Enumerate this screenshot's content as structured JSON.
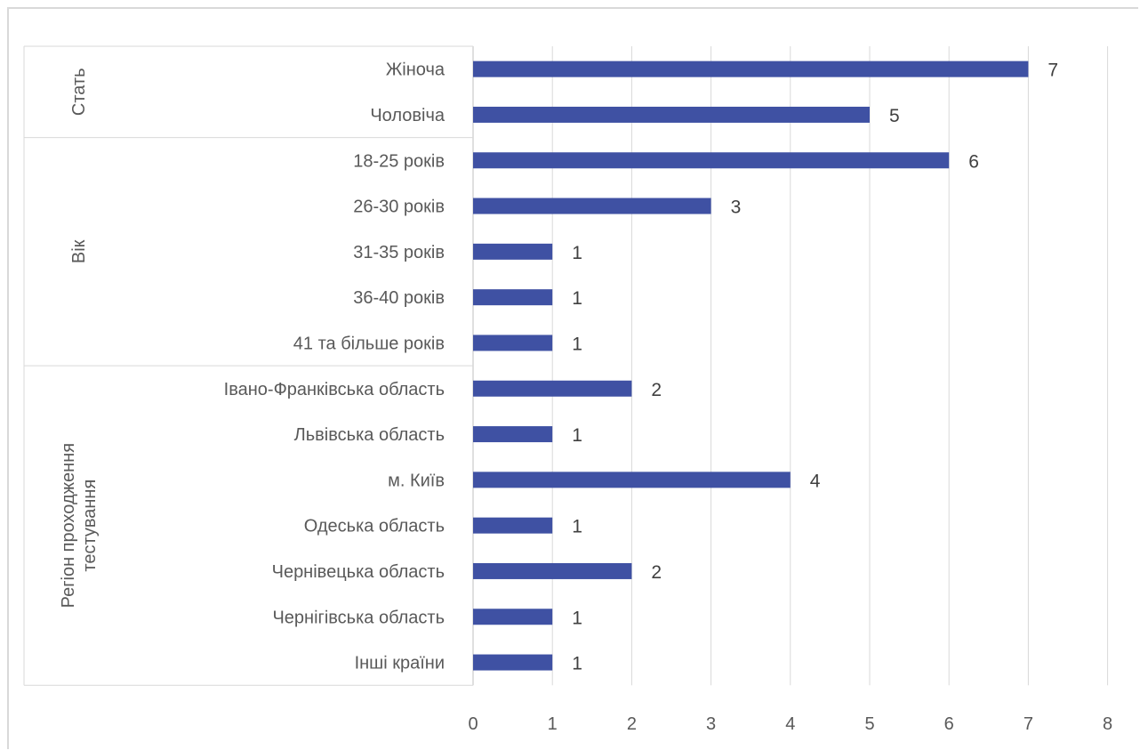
{
  "chart_data": {
    "type": "bar",
    "orientation": "horizontal",
    "title": "",
    "xlabel": "",
    "ylabel": "",
    "xlim": [
      0,
      8
    ],
    "x_ticks": [
      "0",
      "1",
      "2",
      "3",
      "4",
      "5",
      "6",
      "7",
      "8"
    ],
    "grid": true,
    "legend": "none",
    "bar_color": "#3f51a3",
    "groups": [
      {
        "name": "Стать",
        "name_lines": [
          "Стать"
        ],
        "categories": [
          "Жіноча",
          "Чоловіча"
        ],
        "values": [
          7,
          5
        ]
      },
      {
        "name": "Вік",
        "name_lines": [
          "Вік"
        ],
        "categories": [
          "18-25 років",
          "26-30 років",
          "31-35 років",
          "36-40 років",
          "41 та більше років"
        ],
        "values": [
          6,
          3,
          1,
          1,
          1
        ]
      },
      {
        "name": "Регіон проходження тестування",
        "name_lines": [
          "Регіон проходження",
          "тестування"
        ],
        "categories": [
          "Івано-Франківська область",
          "Львівська область",
          "м. Київ",
          "Одеська область",
          "Чернівецька область",
          "Чернігівська область",
          "Інші країни"
        ],
        "values": [
          2,
          1,
          4,
          1,
          2,
          1,
          1
        ]
      }
    ]
  }
}
